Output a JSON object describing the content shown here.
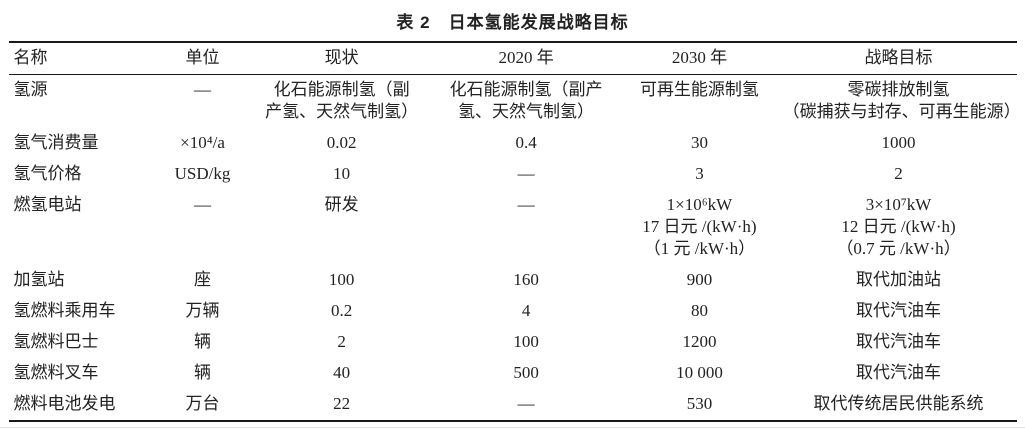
{
  "title": "表 2　日本氢能发展战略目标",
  "colors": {
    "text": "#222222",
    "rule": "#1a1a1a",
    "background": "#ffffff"
  },
  "table": {
    "headers": [
      "名称",
      "单位",
      "现状",
      "2020 年",
      "2030 年",
      "战略目标"
    ],
    "rows": [
      [
        "氢源",
        "—",
        "化石能源制氢（副\n产氢、天然气制氢）",
        "化石能源制氢（副产\n氢、天然气制氢）",
        "可再生能源制氢",
        "零碳排放制氢\n（碳捕获与封存、可再生能源）"
      ],
      [
        "氢气消费量",
        "×10⁴/a",
        "0.02",
        "0.4",
        "30",
        "1000"
      ],
      [
        "氢气价格",
        "USD/kg",
        "10",
        "—",
        "3",
        "2"
      ],
      [
        "燃氢电站",
        "—",
        "研发",
        "—",
        "1×10⁶kW\n17 日元 /(kW·h)\n（1 元 /kW·h）",
        "3×10⁷kW\n12 日元 /(kW·h)\n（0.7 元 /kW·h）"
      ],
      [
        "加氢站",
        "座",
        "100",
        "160",
        "900",
        "取代加油站"
      ],
      [
        "氢燃料乘用车",
        "万辆",
        "0.2",
        "4",
        "80",
        "取代汽油车"
      ],
      [
        "氢燃料巴士",
        "辆",
        "2",
        "100",
        "1200",
        "取代汽油车"
      ],
      [
        "氢燃料叉车",
        "辆",
        "40",
        "500",
        "10 000",
        "取代汽油车"
      ],
      [
        "燃料电池发电",
        "万台",
        "22",
        "—",
        "530",
        "取代传统居民供能系统"
      ]
    ]
  },
  "chart_data": {
    "type": "table",
    "title": "表 2　日本氢能发展战略目标",
    "columns": [
      "名称",
      "单位",
      "现状",
      "2020 年",
      "2030 年",
      "战略目标"
    ],
    "rows": [
      [
        "氢源",
        "—",
        "化石能源制氢（副产氢、天然气制氢）",
        "化石能源制氢（副产氢、天然气制氢）",
        "可再生能源制氢",
        "零碳排放制氢（碳捕获与封存、可再生能源）"
      ],
      [
        "氢气消费量",
        "×10⁴/a",
        "0.02",
        "0.4",
        "30",
        "1000"
      ],
      [
        "氢气价格",
        "USD/kg",
        "10",
        "—",
        "3",
        "2"
      ],
      [
        "燃氢电站",
        "—",
        "研发",
        "—",
        "1×10⁶kW；17 日元/(kW·h)；（1 元/kW·h）",
        "3×10⁷kW；12 日元/(kW·h)；（0.7 元/kW·h）"
      ],
      [
        "加氢站",
        "座",
        "100",
        "160",
        "900",
        "取代加油站"
      ],
      [
        "氢燃料乘用车",
        "万辆",
        "0.2",
        "4",
        "80",
        "取代汽油车"
      ],
      [
        "氢燃料巴士",
        "辆",
        "2",
        "100",
        "1200",
        "取代汽油车"
      ],
      [
        "氢燃料叉车",
        "辆",
        "40",
        "500",
        "10 000",
        "取代汽油车"
      ],
      [
        "燃料电池发电",
        "万台",
        "22",
        "—",
        "530",
        "取代传统居民供能系统"
      ]
    ]
  }
}
